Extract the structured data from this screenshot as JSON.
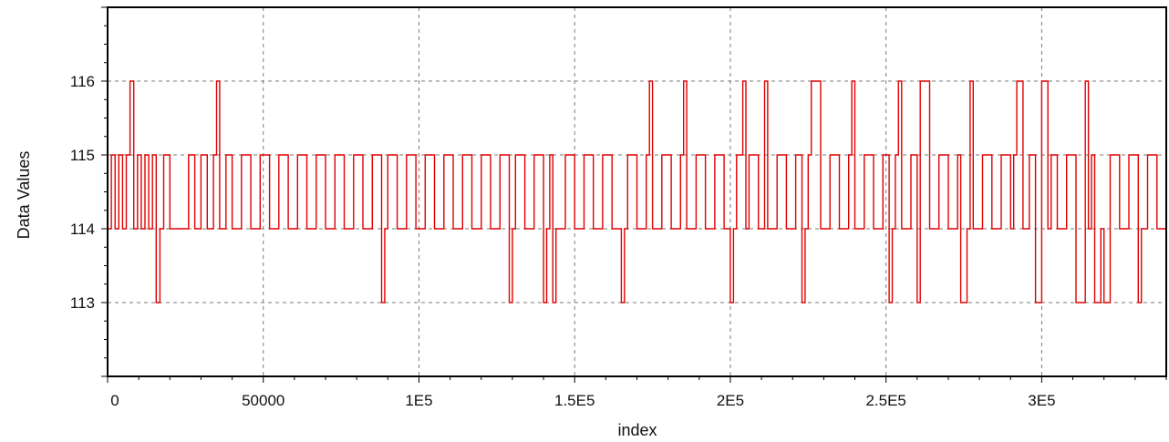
{
  "chart_data": {
    "type": "line",
    "xlabel": "index",
    "ylabel": "Data Values",
    "xlim": [
      0,
      340000
    ],
    "ylim": [
      112,
      117
    ],
    "x_ticks": [
      0,
      50000,
      100000,
      150000,
      200000,
      250000,
      300000
    ],
    "x_tick_labels": [
      "0",
      "50000",
      "1E5",
      "1.5E5",
      "2E5",
      "2.5E5",
      "3E5"
    ],
    "y_ticks": [
      113,
      114,
      115,
      116
    ],
    "y_tick_labels": [
      "113",
      "114",
      "115",
      "116"
    ],
    "grid": true,
    "series": [
      {
        "color": "#e00000",
        "x": [
          0,
          1200,
          2400,
          3600,
          4800,
          6000,
          7200,
          8400,
          9600,
          10800,
          12000,
          13200,
          14400,
          15600,
          16800,
          18000,
          20000,
          22000,
          24000,
          26000,
          28000,
          30000,
          32000,
          34000,
          35000,
          36000,
          38000,
          40000,
          43000,
          46000,
          49000,
          52000,
          55000,
          58000,
          61000,
          64000,
          67000,
          70000,
          73000,
          76000,
          79000,
          82000,
          85000,
          88000,
          89000,
          90000,
          93000,
          96000,
          99000,
          102000,
          105000,
          108000,
          111000,
          114000,
          117000,
          120000,
          123000,
          126000,
          129000,
          130000,
          131000,
          134000,
          137000,
          140000,
          141000,
          142000,
          143000,
          144000,
          147000,
          150000,
          153000,
          156000,
          159000,
          162000,
          165000,
          166000,
          167000,
          170000,
          173000,
          174000,
          175000,
          178000,
          181000,
          184000,
          185000,
          186000,
          189000,
          192000,
          195000,
          198000,
          200000,
          201000,
          202000,
          204000,
          205000,
          206000,
          209000,
          211000,
          212000,
          215000,
          218000,
          221000,
          223000,
          224000,
          225000,
          226000,
          229000,
          232000,
          235000,
          238000,
          239000,
          240000,
          243000,
          246000,
          249000,
          251000,
          252000,
          253000,
          254000,
          255000,
          258000,
          260000,
          261000,
          264000,
          267000,
          270000,
          273000,
          274000,
          276000,
          277000,
          278000,
          281000,
          284000,
          287000,
          290000,
          291000,
          292000,
          294000,
          296000,
          298000,
          300000,
          302000,
          303000,
          305000,
          308000,
          311000,
          314000,
          315000,
          316000,
          317000,
          319000,
          320000,
          322000,
          325000,
          328000,
          331000,
          332000,
          334000,
          337000,
          340000
        ],
        "y": [
          114,
          115,
          114,
          115,
          114,
          115,
          116,
          114,
          115,
          114,
          115,
          114,
          115,
          113,
          114,
          115,
          114,
          114,
          114,
          115,
          114,
          115,
          114,
          115,
          116,
          114,
          115,
          114,
          115,
          114,
          115,
          114,
          115,
          114,
          115,
          114,
          115,
          114,
          115,
          114,
          115,
          114,
          115,
          113,
          114,
          115,
          114,
          115,
          114,
          115,
          114,
          115,
          114,
          115,
          114,
          115,
          114,
          115,
          113,
          114,
          115,
          114,
          115,
          113,
          114,
          115,
          113,
          114,
          115,
          114,
          115,
          114,
          115,
          114,
          113,
          114,
          115,
          114,
          115,
          116,
          114,
          115,
          114,
          115,
          116,
          114,
          115,
          114,
          115,
          114,
          113,
          114,
          115,
          116,
          114,
          115,
          114,
          116,
          114,
          115,
          114,
          115,
          113,
          114,
          115,
          116,
          114,
          115,
          114,
          115,
          116,
          114,
          115,
          114,
          115,
          113,
          114,
          115,
          116,
          114,
          115,
          113,
          116,
          114,
          115,
          114,
          115,
          113,
          114,
          116,
          114,
          115,
          114,
          115,
          114,
          115,
          116,
          114,
          115,
          113,
          116,
          114,
          115,
          114,
          115,
          113,
          116,
          114,
          115,
          113,
          114,
          113,
          115,
          114,
          115,
          113,
          114,
          115,
          114,
          115
        ]
      }
    ]
  }
}
